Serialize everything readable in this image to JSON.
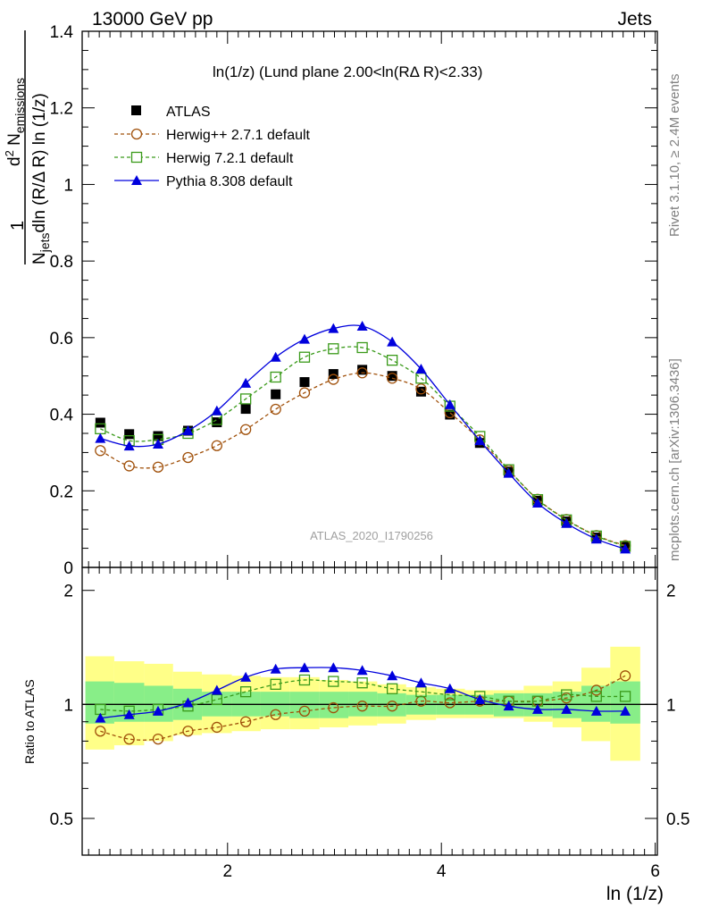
{
  "header": {
    "left": "13000 GeV pp",
    "right": "Jets"
  },
  "side_labels": {
    "rivet": "Rivet 3.1.10, ≥ 2.4M events",
    "mcplots": "mcplots.cern.ch [arXiv:1306.3436]"
  },
  "main_plot": {
    "title": "ln(1/z) (Lund plane 2.00<ln(RΔ R)<2.33)",
    "watermark": "ATLAS_2020_I1790256",
    "ylabel_lines": {
      "numerator": "d² N_emissions",
      "denominator": "N_jets dln (R/Δ R) ln (1/z)",
      "one": "1"
    },
    "yticks": [
      "0",
      "0.2",
      "0.4",
      "0.6",
      "0.8",
      "1",
      "1.2",
      "1.4"
    ]
  },
  "ratio_plot": {
    "ylabel": "Ratio to ATLAS",
    "yticks": [
      "0.5",
      "1",
      "2"
    ]
  },
  "xaxis": {
    "label": "ln (1/z)",
    "ticks": [
      "2",
      "4",
      "6"
    ]
  },
  "legend": {
    "atlas": "ATLAS",
    "herwigpp": "Herwig++ 2.7.1 default",
    "herwig7": "Herwig 7.2.1 default",
    "pythia": "Pythia 8.308 default"
  },
  "chart_data": {
    "type": "line",
    "xlim": [
      0.64,
      6.02
    ],
    "ylim": [
      0,
      1.4
    ],
    "ratio_ylim": [
      0.4,
      2.3
    ],
    "ratio_scale": "log",
    "x": [
      0.81,
      1.08,
      1.35,
      1.63,
      1.9,
      2.17,
      2.45,
      2.72,
      2.99,
      3.26,
      3.54,
      3.81,
      4.08,
      4.36,
      4.63,
      4.9,
      5.17,
      5.45,
      5.72
    ],
    "series": [
      {
        "name": "ATLAS",
        "color": "#000000",
        "marker": "square-filled",
        "values": [
          0.378,
          0.348,
          0.343,
          0.357,
          0.379,
          0.414,
          0.452,
          0.484,
          0.505,
          0.516,
          0.5,
          0.459,
          0.399,
          0.325,
          0.25,
          0.174,
          0.12,
          0.078,
          0.054
        ]
      },
      {
        "name": "Herwig++ 2.7.1 default",
        "color": "#a0500a",
        "marker": "circle-open",
        "dash": true,
        "values": [
          0.305,
          0.265,
          0.262,
          0.287,
          0.318,
          0.36,
          0.413,
          0.456,
          0.491,
          0.508,
          0.494,
          0.466,
          0.404,
          0.333,
          0.254,
          0.178,
          0.125,
          0.083,
          0.057
        ]
      },
      {
        "name": "Herwig 7.2.1 default",
        "color": "#3a9a1a",
        "marker": "square-open",
        "dash": true,
        "values": [
          0.362,
          0.331,
          0.334,
          0.35,
          0.386,
          0.44,
          0.497,
          0.549,
          0.571,
          0.574,
          0.541,
          0.494,
          0.421,
          0.342,
          0.255,
          0.177,
          0.124,
          0.082,
          0.055
        ]
      },
      {
        "name": "Pythia 8.308 default",
        "color": "#0000dd",
        "marker": "triangle-filled",
        "values": [
          0.337,
          0.317,
          0.322,
          0.357,
          0.409,
          0.481,
          0.549,
          0.596,
          0.624,
          0.63,
          0.589,
          0.518,
          0.425,
          0.331,
          0.246,
          0.168,
          0.115,
          0.074,
          0.048
        ]
      }
    ],
    "ratios": {
      "Herwig++ 2.7.1 default": [
        0.85,
        0.81,
        0.81,
        0.85,
        0.87,
        0.9,
        0.94,
        0.96,
        0.98,
        0.99,
        0.99,
        1.02,
        1.01,
        1.02,
        1.02,
        1.02,
        1.04,
        1.09,
        1.19
      ],
      "Herwig 7.2.1 default": [
        0.97,
        0.96,
        0.97,
        0.99,
        1.03,
        1.08,
        1.13,
        1.16,
        1.15,
        1.14,
        1.1,
        1.08,
        1.06,
        1.05,
        1.02,
        1.02,
        1.06,
        1.05,
        1.05
      ],
      "Pythia 8.308 default": [
        0.92,
        0.94,
        0.96,
        1.01,
        1.09,
        1.18,
        1.24,
        1.25,
        1.25,
        1.23,
        1.19,
        1.14,
        1.1,
        1.03,
        0.99,
        0.97,
        0.97,
        0.96,
        0.96
      ]
    },
    "band_edges": [
      0.67,
      0.94,
      1.22,
      1.49,
      1.76,
      2.04,
      2.31,
      2.58,
      2.86,
      3.13,
      3.4,
      3.67,
      3.95,
      4.22,
      4.49,
      4.77,
      5.04,
      5.31,
      5.58,
      5.86
    ],
    "band_inner": [
      [
        0.89,
        1.15
      ],
      [
        0.9,
        1.14
      ],
      [
        0.9,
        1.12
      ],
      [
        0.91,
        1.1
      ],
      [
        0.93,
        1.08
      ],
      [
        0.93,
        1.08
      ],
      [
        0.93,
        1.08
      ],
      [
        0.92,
        1.08
      ],
      [
        0.92,
        1.08
      ],
      [
        0.93,
        1.08
      ],
      [
        0.93,
        1.07
      ],
      [
        0.94,
        1.06
      ],
      [
        0.94,
        1.06
      ],
      [
        0.94,
        1.06
      ],
      [
        0.93,
        1.07
      ],
      [
        0.93,
        1.07
      ],
      [
        0.92,
        1.08
      ],
      [
        0.9,
        1.12
      ],
      [
        0.89,
        1.15
      ]
    ],
    "band_outer": [
      [
        0.76,
        1.34
      ],
      [
        0.78,
        1.3
      ],
      [
        0.8,
        1.28
      ],
      [
        0.83,
        1.22
      ],
      [
        0.84,
        1.2
      ],
      [
        0.85,
        1.19
      ],
      [
        0.86,
        1.18
      ],
      [
        0.86,
        1.18
      ],
      [
        0.87,
        1.16
      ],
      [
        0.88,
        1.15
      ],
      [
        0.89,
        1.13
      ],
      [
        0.91,
        1.11
      ],
      [
        0.92,
        1.1
      ],
      [
        0.92,
        1.09
      ],
      [
        0.92,
        1.09
      ],
      [
        0.9,
        1.12
      ],
      [
        0.87,
        1.15
      ],
      [
        0.8,
        1.25
      ],
      [
        0.71,
        1.42
      ]
    ]
  }
}
